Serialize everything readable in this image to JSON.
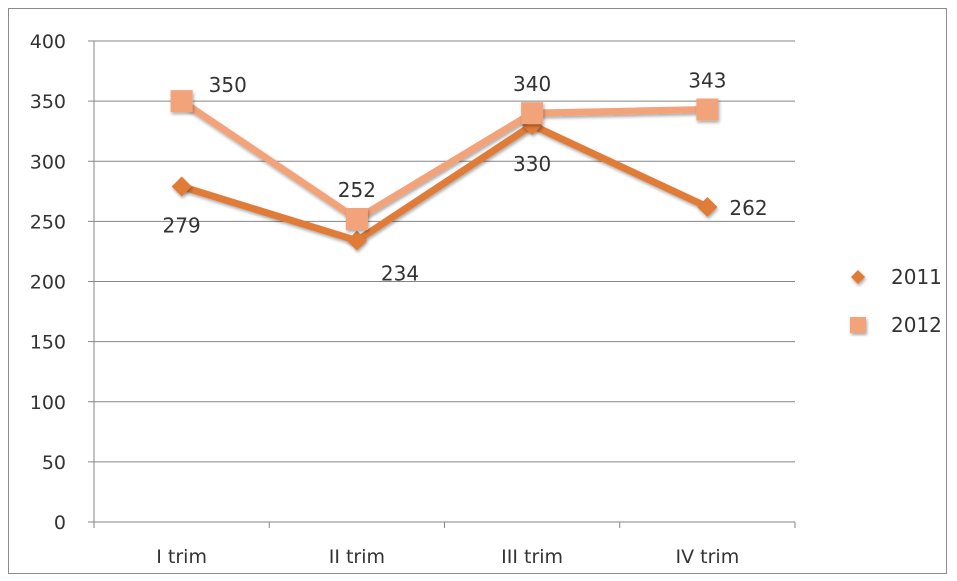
{
  "chart_data": {
    "type": "line",
    "categories": [
      "I trim",
      "II trim",
      "III trim",
      "IV trim"
    ],
    "ylim": [
      0,
      400
    ],
    "yticks": [
      0,
      50,
      100,
      150,
      200,
      250,
      300,
      350,
      400
    ],
    "grid": true,
    "legend_position": "right",
    "series": [
      {
        "name": "2011",
        "values": [
          279,
          234,
          330,
          262
        ],
        "color": "#e07b39",
        "marker": "diamond",
        "label_position": [
          "below",
          "below-right",
          "below",
          "right"
        ]
      },
      {
        "name": "2012",
        "values": [
          350,
          252,
          340,
          343
        ],
        "color": "#f3a37a",
        "marker": "square",
        "label_position": [
          "right",
          "above",
          "above",
          "above"
        ]
      }
    ]
  }
}
